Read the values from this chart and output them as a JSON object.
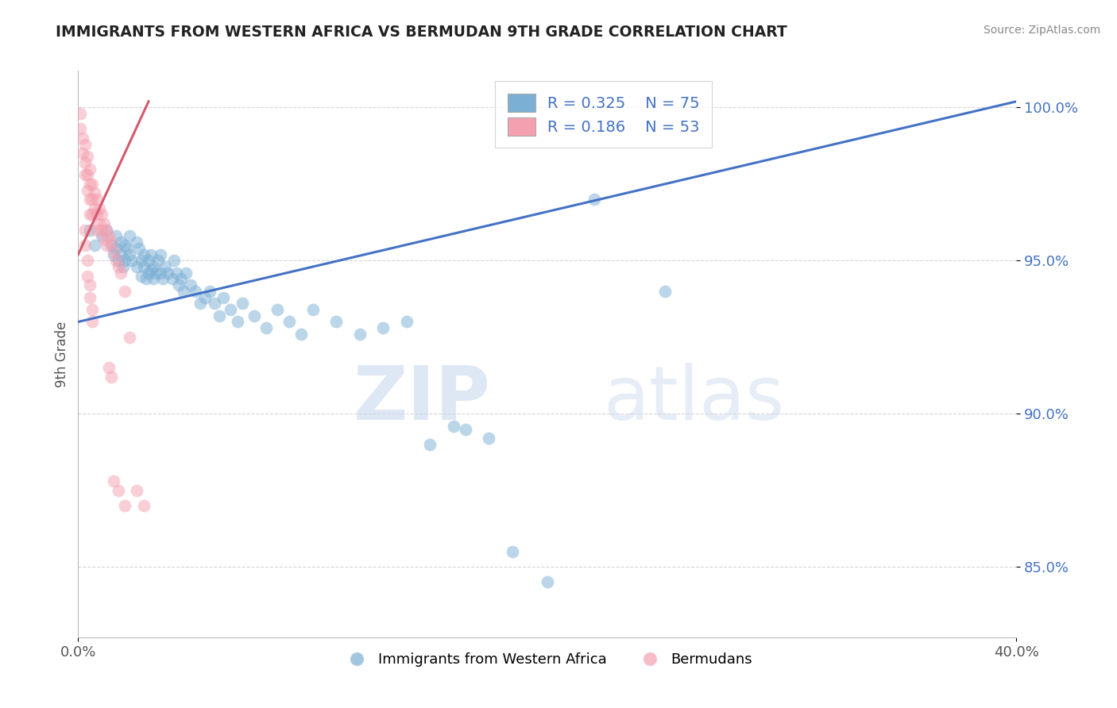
{
  "title": "IMMIGRANTS FROM WESTERN AFRICA VS BERMUDAN 9TH GRADE CORRELATION CHART",
  "source": "Source: ZipAtlas.com",
  "ylabel": "9th Grade",
  "legend_blue_r": "R = 0.325",
  "legend_blue_n": "N = 75",
  "legend_pink_r": "R = 0.186",
  "legend_pink_n": "N = 53",
  "legend_label_blue": "Immigrants from Western Africa",
  "legend_label_pink": "Bermudans",
  "xlim": [
    0.0,
    0.4
  ],
  "ylim": [
    0.827,
    1.012
  ],
  "yticks": [
    0.85,
    0.9,
    0.95,
    1.0
  ],
  "ytick_labels": [
    "85.0%",
    "90.0%",
    "95.0%",
    "100.0%"
  ],
  "xticks": [
    0.0,
    0.4
  ],
  "xtick_labels": [
    "0.0%",
    "40.0%"
  ],
  "background_color": "#ffffff",
  "grid_color": "#cccccc",
  "blue_color": "#7bafd4",
  "pink_color": "#f4a0b0",
  "blue_line_color": "#4472c4",
  "pink_line_color": "#d45a6e",
  "watermark_zip": "ZIP",
  "watermark_atlas": "atlas",
  "blue_scatter_x": [
    0.005,
    0.007,
    0.01,
    0.012,
    0.014,
    0.015,
    0.016,
    0.016,
    0.017,
    0.018,
    0.018,
    0.019,
    0.02,
    0.02,
    0.021,
    0.022,
    0.022,
    0.023,
    0.025,
    0.025,
    0.026,
    0.027,
    0.027,
    0.028,
    0.028,
    0.029,
    0.03,
    0.03,
    0.031,
    0.031,
    0.032,
    0.032,
    0.033,
    0.034,
    0.035,
    0.035,
    0.036,
    0.037,
    0.038,
    0.04,
    0.041,
    0.042,
    0.043,
    0.044,
    0.045,
    0.046,
    0.048,
    0.05,
    0.052,
    0.054,
    0.056,
    0.058,
    0.06,
    0.062,
    0.065,
    0.068,
    0.07,
    0.075,
    0.08,
    0.085,
    0.09,
    0.095,
    0.1,
    0.11,
    0.12,
    0.13,
    0.14,
    0.15,
    0.16,
    0.165,
    0.175,
    0.185,
    0.2,
    0.22,
    0.25
  ],
  "blue_scatter_y": [
    0.96,
    0.955,
    0.958,
    0.96,
    0.955,
    0.952,
    0.958,
    0.954,
    0.95,
    0.956,
    0.952,
    0.948,
    0.955,
    0.95,
    0.954,
    0.958,
    0.952,
    0.95,
    0.956,
    0.948,
    0.954,
    0.95,
    0.945,
    0.952,
    0.948,
    0.944,
    0.95,
    0.946,
    0.952,
    0.947,
    0.948,
    0.944,
    0.946,
    0.95,
    0.952,
    0.946,
    0.944,
    0.948,
    0.946,
    0.944,
    0.95,
    0.946,
    0.942,
    0.944,
    0.94,
    0.946,
    0.942,
    0.94,
    0.936,
    0.938,
    0.94,
    0.936,
    0.932,
    0.938,
    0.934,
    0.93,
    0.936,
    0.932,
    0.928,
    0.934,
    0.93,
    0.926,
    0.934,
    0.93,
    0.926,
    0.928,
    0.93,
    0.89,
    0.896,
    0.895,
    0.892,
    0.855,
    0.845,
    0.97,
    0.94
  ],
  "pink_scatter_x": [
    0.001,
    0.001,
    0.002,
    0.002,
    0.003,
    0.003,
    0.003,
    0.004,
    0.004,
    0.004,
    0.005,
    0.005,
    0.005,
    0.005,
    0.006,
    0.006,
    0.006,
    0.007,
    0.007,
    0.008,
    0.008,
    0.008,
    0.009,
    0.009,
    0.01,
    0.01,
    0.011,
    0.011,
    0.012,
    0.012,
    0.013,
    0.014,
    0.015,
    0.016,
    0.017,
    0.018,
    0.02,
    0.022,
    0.025,
    0.028,
    0.003,
    0.003,
    0.004,
    0.004,
    0.005,
    0.005,
    0.006,
    0.006,
    0.015,
    0.017,
    0.02,
    0.013,
    0.014
  ],
  "pink_scatter_y": [
    0.998,
    0.993,
    0.99,
    0.985,
    0.988,
    0.982,
    0.978,
    0.984,
    0.978,
    0.973,
    0.98,
    0.975,
    0.97,
    0.965,
    0.975,
    0.97,
    0.965,
    0.972,
    0.967,
    0.97,
    0.965,
    0.96,
    0.967,
    0.962,
    0.965,
    0.96,
    0.962,
    0.957,
    0.96,
    0.955,
    0.958,
    0.956,
    0.953,
    0.95,
    0.948,
    0.946,
    0.94,
    0.925,
    0.875,
    0.87,
    0.96,
    0.955,
    0.95,
    0.945,
    0.942,
    0.938,
    0.934,
    0.93,
    0.878,
    0.875,
    0.87,
    0.915,
    0.912
  ],
  "blue_trend_x": [
    0.0,
    0.4
  ],
  "blue_trend_y": [
    0.93,
    1.002
  ],
  "pink_trend_x": [
    0.0,
    0.03
  ],
  "pink_trend_y": [
    0.952,
    1.002
  ]
}
